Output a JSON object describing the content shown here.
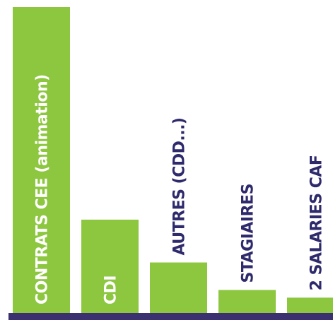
{
  "chart_data": {
    "type": "bar",
    "categories": [
      "CONTRATS CEE (animation)",
      "CDI",
      "AUTRES (CDD...)",
      "STAGIAIRES",
      "2 SALARIES CAF"
    ],
    "values": [
      100,
      30.5,
      16.5,
      7.5,
      5
    ],
    "title": "",
    "xlabel": "",
    "ylabel": "",
    "ylim": [
      0,
      100
    ],
    "grid": false,
    "legend": "none",
    "colors": {
      "bar": "#8dc63f",
      "label_inside": "#ffffff",
      "label_outside": "#2e2a6b",
      "baseline": "#3b3170"
    }
  }
}
